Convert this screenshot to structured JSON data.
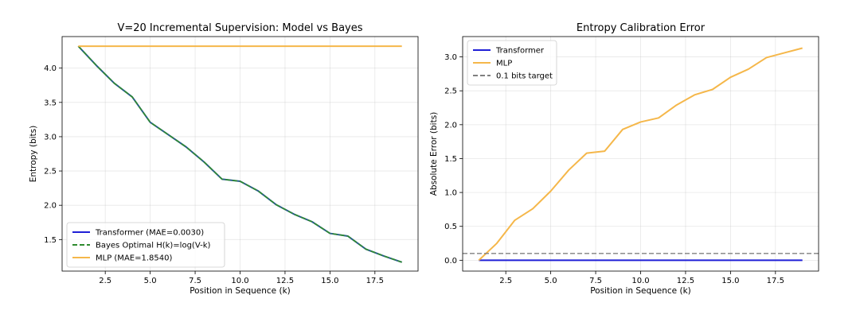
{
  "chart_data": [
    {
      "type": "line",
      "title": "V=20 Incremental Supervision: Model vs Bayes",
      "xlabel": "Position in Sequence (k)",
      "ylabel": "Entropy (bits)",
      "xlim": [
        0.1,
        19.9
      ],
      "ylim": [
        1.04,
        4.46
      ],
      "xticks": [
        2.5,
        5.0,
        7.5,
        10.0,
        12.5,
        15.0,
        17.5
      ],
      "xtick_labels": [
        "2.5",
        "5.0",
        "7.5",
        "10.0",
        "12.5",
        "15.0",
        "17.5"
      ],
      "yticks": [
        1.5,
        2.0,
        2.5,
        3.0,
        3.5,
        4.0
      ],
      "ytick_labels": [
        "1.5",
        "2.0",
        "2.5",
        "3.0",
        "3.5",
        "4.0"
      ],
      "grid": true,
      "legend_position": "bottom-left",
      "x": [
        1,
        2,
        3,
        4,
        5,
        6,
        7,
        8,
        9,
        10,
        11,
        12,
        13,
        14,
        15,
        16,
        17,
        18,
        19
      ],
      "series": [
        {
          "name": "Transformer (MAE=0.0030)",
          "color": "#1f1fd6",
          "style": "solid",
          "values": [
            4.32,
            4.04,
            3.78,
            3.58,
            3.21,
            3.03,
            2.85,
            2.63,
            2.38,
            2.35,
            2.21,
            2.01,
            1.87,
            1.76,
            1.59,
            1.55,
            1.36,
            1.26,
            1.17
          ]
        },
        {
          "name": "Bayes Optimal H(k)=log(V-k)",
          "color": "#2e8b2e",
          "style": "dashed",
          "values": [
            4.32,
            4.04,
            3.78,
            3.58,
            3.21,
            3.03,
            2.85,
            2.63,
            2.38,
            2.35,
            2.21,
            2.01,
            1.87,
            1.76,
            1.59,
            1.55,
            1.36,
            1.26,
            1.17
          ]
        },
        {
          "name": "MLP (MAE=1.8540)",
          "color": "#f5b74a",
          "style": "solid",
          "values": [
            4.32,
            4.32,
            4.32,
            4.32,
            4.32,
            4.32,
            4.32,
            4.32,
            4.32,
            4.32,
            4.32,
            4.32,
            4.32,
            4.32,
            4.32,
            4.32,
            4.32,
            4.32,
            4.32
          ]
        }
      ]
    },
    {
      "type": "line",
      "title": "Entropy Calibration Error",
      "xlabel": "Position in Sequence (k)",
      "ylabel": "Absolute Error (bits)",
      "xlim": [
        0.1,
        19.9
      ],
      "ylim": [
        -0.16,
        3.3
      ],
      "xticks": [
        2.5,
        5.0,
        7.5,
        10.0,
        12.5,
        15.0,
        17.5
      ],
      "xtick_labels": [
        "2.5",
        "5.0",
        "7.5",
        "10.0",
        "12.5",
        "15.0",
        "17.5"
      ],
      "yticks": [
        0.0,
        0.5,
        1.0,
        1.5,
        2.0,
        2.5,
        3.0
      ],
      "ytick_labels": [
        "0.0",
        "0.5",
        "1.0",
        "1.5",
        "2.0",
        "2.5",
        "3.0"
      ],
      "grid": true,
      "legend_position": "top-left",
      "x": [
        1,
        2,
        3,
        4,
        5,
        6,
        7,
        8,
        9,
        10,
        11,
        12,
        13,
        14,
        15,
        16,
        17,
        18,
        19
      ],
      "series": [
        {
          "name": "Transformer",
          "color": "#1f1fd6",
          "style": "solid",
          "values": [
            0.0,
            0.0,
            0.0,
            0.0,
            0.0,
            0.0,
            0.0,
            0.0,
            0.0,
            0.0,
            0.0,
            0.0,
            0.0,
            0.0,
            0.0,
            0.0,
            0.0,
            0.0,
            0.0
          ]
        },
        {
          "name": "MLP",
          "color": "#f5b74a",
          "style": "solid",
          "values": [
            0.0,
            0.25,
            0.59,
            0.76,
            1.02,
            1.33,
            1.58,
            1.61,
            1.93,
            2.04,
            2.1,
            2.29,
            2.44,
            2.52,
            2.7,
            2.82,
            2.99,
            3.06,
            3.13
          ]
        },
        {
          "name": "0.1 bits target",
          "color": "#808080",
          "style": "dashed",
          "hline": 0.1
        }
      ]
    }
  ]
}
